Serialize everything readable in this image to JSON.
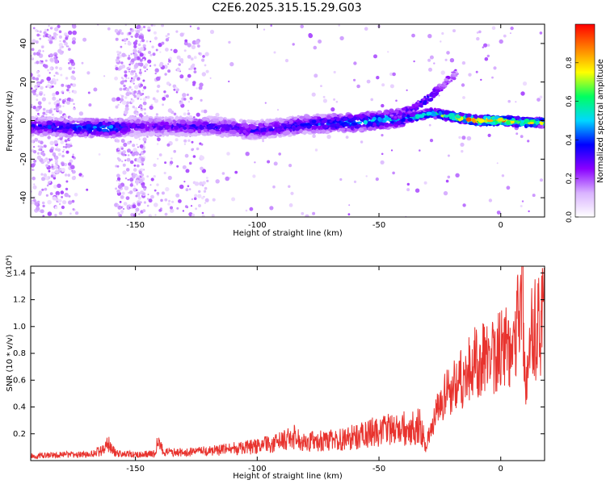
{
  "title": "C2E6.2025.315.15.29.G03",
  "colors": {
    "snr_line": "#e8332e",
    "axis": "#000000",
    "background": "#ffffff"
  },
  "chart_data": [
    {
      "type": "heatmap",
      "xlabel": "Height of straight line (km)",
      "ylabel": "Frequency (Hz)",
      "xlim": [
        -193,
        18
      ],
      "ylim": [
        -50,
        50
      ],
      "x_ticks": [
        -150,
        -100,
        -50,
        0
      ],
      "y_ticks": [
        -40,
        -20,
        0,
        20,
        40
      ],
      "colorbar": {
        "label": "Normalized spectral amplitude",
        "range": [
          0,
          1
        ],
        "ticks": [
          0.0,
          0.2,
          0.4,
          0.6,
          0.8
        ],
        "colormap": [
          "#ffffff",
          "#d9b3ff",
          "#8a00ff",
          "#0000ff",
          "#00d8ff",
          "#00ff60",
          "#ffff00",
          "#ff8000",
          "#ff0000"
        ]
      },
      "ridge": {
        "x": [
          -193,
          -160,
          -150,
          -120,
          -100,
          -80,
          -60,
          -45,
          -35,
          -28,
          -20,
          -10,
          0,
          10,
          18
        ],
        "freq": [
          -3,
          -4,
          -3,
          -3,
          -5,
          -2,
          -1,
          1,
          2,
          4,
          2,
          0,
          0,
          -1,
          -1
        ],
        "amplitude": [
          0.35,
          0.5,
          0.3,
          0.35,
          0.35,
          0.4,
          0.5,
          0.55,
          0.6,
          0.65,
          0.8,
          0.95,
          0.95,
          0.85,
          0.7
        ]
      },
      "upper_branch": {
        "x": [
          -45,
          -40,
          -35,
          -30,
          -25,
          -18
        ],
        "freq": [
          2,
          4,
          7,
          11,
          17,
          25
        ],
        "amplitude": [
          0.3,
          0.3,
          0.3,
          0.35,
          0.25,
          0.2
        ]
      }
    },
    {
      "type": "line",
      "xlabel": "Height of straight line (km)",
      "ylabel": "SNR (10 * v/v)",
      "y_scale_label": "(x10⁴)",
      "xlim": [
        -193,
        18
      ],
      "ylim": [
        0,
        1.45
      ],
      "x_ticks": [
        -150,
        -100,
        -50,
        0
      ],
      "y_ticks": [
        0.2,
        0.4,
        0.6,
        0.8,
        1.0,
        1.2,
        1.4
      ],
      "series": [
        {
          "x": [
            -193,
            -180,
            -170,
            -164,
            -161,
            -158,
            -150,
            -142,
            -141,
            -138,
            -130,
            -120,
            -110,
            -100,
            -90,
            -85,
            -80,
            -70,
            -60,
            -50,
            -40,
            -33,
            -31,
            -29,
            -26,
            -22,
            -18,
            -15,
            -10,
            -5,
            0,
            3,
            6,
            8,
            9,
            10,
            12,
            15,
            18
          ],
          "y": [
            0.04,
            0.05,
            0.05,
            0.08,
            0.14,
            0.06,
            0.05,
            0.06,
            0.15,
            0.07,
            0.07,
            0.08,
            0.1,
            0.12,
            0.16,
            0.2,
            0.16,
            0.17,
            0.2,
            0.25,
            0.27,
            0.3,
            0.14,
            0.22,
            0.4,
            0.55,
            0.65,
            0.7,
            0.8,
            0.85,
            0.9,
            0.95,
            1.05,
            1.3,
            1.43,
            0.55,
            1.0,
            1.1,
            1.15
          ]
        }
      ]
    }
  ]
}
